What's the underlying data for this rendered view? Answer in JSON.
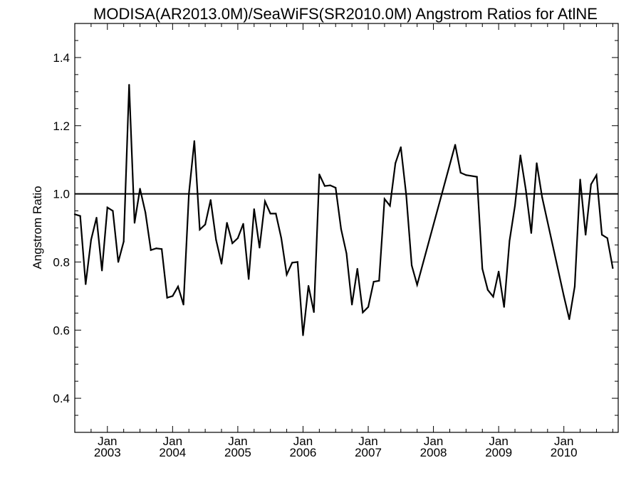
{
  "chart_data": {
    "type": "line",
    "title": "MODISA(AR2013.0M)/SeaWiFS(SR2010.0M)  Angstrom Ratios for AtlNE",
    "xlabel": "",
    "ylabel": "Angstrom Ratio",
    "xlim": [
      "2002-07",
      "2010-11"
    ],
    "ylim": [
      0.3,
      1.5
    ],
    "yticks": [
      0.4,
      0.6,
      0.8,
      1.0,
      1.2,
      1.4
    ],
    "ytick_labels": [
      "0.4",
      "0.6",
      "0.8",
      "1.0",
      "1.2",
      "1.4"
    ],
    "xticks": [
      {
        "date": "2003-01",
        "month": "Jan",
        "year": "2003"
      },
      {
        "date": "2004-01",
        "month": "Jan",
        "year": "2004"
      },
      {
        "date": "2005-01",
        "month": "Jan",
        "year": "2005"
      },
      {
        "date": "2006-01",
        "month": "Jan",
        "year": "2006"
      },
      {
        "date": "2007-01",
        "month": "Jan",
        "year": "2007"
      },
      {
        "date": "2008-01",
        "month": "Jan",
        "year": "2008"
      },
      {
        "date": "2009-01",
        "month": "Jan",
        "year": "2009"
      },
      {
        "date": "2010-01",
        "month": "Jan",
        "year": "2010"
      }
    ],
    "reference_line": {
      "y": 1.0
    },
    "grid": false,
    "series": [
      {
        "color": "#000000",
        "points": [
          [
            "2002-07",
            0.94
          ],
          [
            "2002-08",
            0.935
          ],
          [
            "2002-09",
            0.735
          ],
          [
            "2002-10",
            0.865
          ],
          [
            "2002-11",
            0.93
          ],
          [
            "2002-12",
            0.775
          ],
          [
            "2003-01",
            0.96
          ],
          [
            "2003-02",
            0.95
          ],
          [
            "2003-03",
            0.8
          ],
          [
            "2003-04",
            0.86
          ],
          [
            "2003-05",
            1.32
          ],
          [
            "2003-06",
            0.915
          ],
          [
            "2003-07",
            1.015
          ],
          [
            "2003-08",
            0.945
          ],
          [
            "2003-09",
            0.835
          ],
          [
            "2003-10",
            0.84
          ],
          [
            "2003-11",
            0.838
          ],
          [
            "2003-12",
            0.695
          ],
          [
            "2004-01",
            0.7
          ],
          [
            "2004-02",
            0.728
          ],
          [
            "2004-03",
            0.675
          ],
          [
            "2004-04",
            1.0
          ],
          [
            "2004-05",
            1.155
          ],
          [
            "2004-06",
            0.895
          ],
          [
            "2004-07",
            0.91
          ],
          [
            "2004-08",
            0.982
          ],
          [
            "2004-09",
            0.865
          ],
          [
            "2004-10",
            0.795
          ],
          [
            "2004-11",
            0.915
          ],
          [
            "2004-12",
            0.855
          ],
          [
            "2005-01",
            0.87
          ],
          [
            "2005-02",
            0.912
          ],
          [
            "2005-03",
            0.75
          ],
          [
            "2005-04",
            0.955
          ],
          [
            "2005-05",
            0.842
          ],
          [
            "2005-06",
            0.978
          ],
          [
            "2005-07",
            0.942
          ],
          [
            "2005-08",
            0.942
          ],
          [
            "2005-09",
            0.87
          ],
          [
            "2005-10",
            0.763
          ],
          [
            "2005-11",
            0.798
          ],
          [
            "2005-12",
            0.8
          ],
          [
            "2006-01",
            0.585
          ],
          [
            "2006-02",
            0.73
          ],
          [
            "2006-03",
            0.653
          ],
          [
            "2006-04",
            1.057
          ],
          [
            "2006-05",
            1.023
          ],
          [
            "2006-06",
            1.025
          ],
          [
            "2006-07",
            1.018
          ],
          [
            "2006-08",
            0.897
          ],
          [
            "2006-09",
            0.825
          ],
          [
            "2006-10",
            0.675
          ],
          [
            "2006-11",
            0.78
          ],
          [
            "2006-12",
            0.652
          ],
          [
            "2007-01",
            0.668
          ],
          [
            "2007-02",
            0.742
          ],
          [
            "2007-03",
            0.745
          ],
          [
            "2007-04",
            0.985
          ],
          [
            "2007-05",
            0.965
          ],
          [
            "2007-06",
            1.09
          ],
          [
            "2007-07",
            1.137
          ],
          [
            "2007-08",
            0.995
          ],
          [
            "2007-09",
            0.79
          ],
          [
            "2007-10",
            0.733
          ],
          [
            "2008-05",
            1.144
          ],
          [
            "2008-06",
            1.062
          ],
          [
            "2008-07",
            1.055
          ],
          [
            "2008-09",
            1.05
          ],
          [
            "2008-10",
            0.78
          ],
          [
            "2008-11",
            0.718
          ],
          [
            "2008-12",
            0.698
          ],
          [
            "2009-01",
            0.772
          ],
          [
            "2009-02",
            0.668
          ],
          [
            "2009-03",
            0.862
          ],
          [
            "2009-04",
            0.965
          ],
          [
            "2009-05",
            1.113
          ],
          [
            "2009-06",
            1.012
          ],
          [
            "2009-07",
            0.885
          ],
          [
            "2009-08",
            1.09
          ],
          [
            "2009-09",
            0.99
          ],
          [
            "2010-01",
            0.7
          ],
          [
            "2010-02",
            0.632
          ],
          [
            "2010-03",
            0.728
          ],
          [
            "2010-04",
            1.042
          ],
          [
            "2010-05",
            0.88
          ],
          [
            "2010-06",
            1.028
          ],
          [
            "2010-07",
            1.055
          ],
          [
            "2010-08",
            0.88
          ],
          [
            "2010-09",
            0.87
          ],
          [
            "2010-10",
            0.782
          ]
        ]
      }
    ]
  }
}
